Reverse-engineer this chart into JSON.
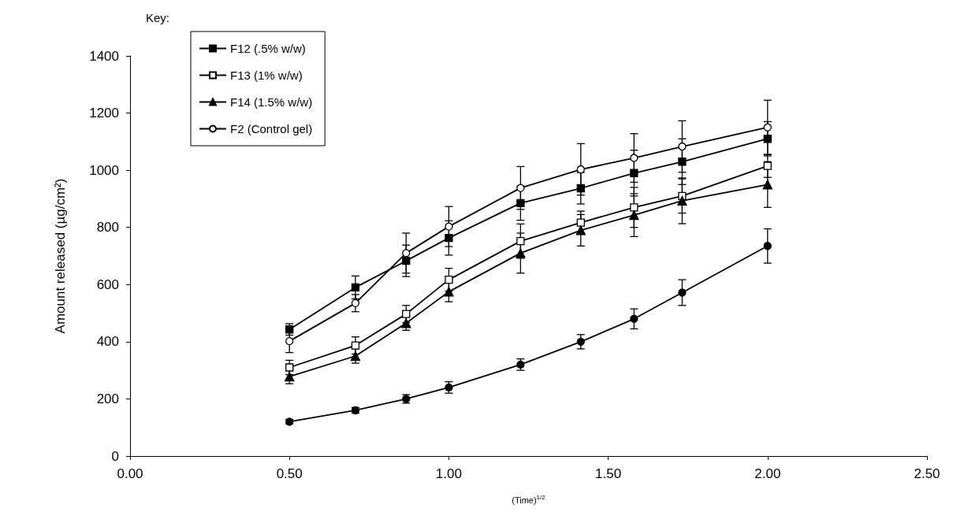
{
  "chart_data": {
    "type": "line",
    "xlabel": "(Time)$^{1/2}$",
    "ylabel": "Amount released (µg/cm²)",
    "legend_title": "Key:",
    "x": [
      0.5,
      0.707,
      0.866,
      1.0,
      1.225,
      1.414,
      1.581,
      1.732,
      2.0
    ],
    "xlim": [
      0,
      2.5
    ],
    "xticks": [
      {
        "value": 0,
        "label": "0.00"
      },
      {
        "value": 0.5,
        "label": "0.50"
      },
      {
        "value": 1,
        "label": "1.00"
      },
      {
        "value": 1.5,
        "label": "1.50"
      },
      {
        "value": 2,
        "label": "2.00"
      },
      {
        "value": 2.5,
        "label": "2.50"
      }
    ],
    "ylim": [
      0,
      1400
    ],
    "yticks": [
      0,
      200,
      400,
      600,
      800,
      1000,
      1200,
      1400
    ],
    "grid": false,
    "legend": "top left",
    "line_style": "solid",
    "series": [
      {
        "name": "F12 (.5% w/w)",
        "color": "#000000",
        "marker": "square",
        "values": [
          443,
          590,
          683,
          763,
          885,
          937,
          990,
          1030,
          1110
        ],
        "errors": [
          20,
          40,
          55,
          60,
          60,
          55,
          80,
          80,
          60
        ]
      },
      {
        "name": "F13 (1% w/w)",
        "color": "#000000",
        "marker": "square-open",
        "values": [
          310,
          387,
          497,
          617,
          752,
          817,
          870,
          910,
          1015
        ],
        "errors": [
          25,
          30,
          30,
          40,
          60,
          40,
          70,
          60,
          40
        ]
      },
      {
        "name": "F14 (1.5% w/w)",
        "color": "#000000",
        "marker": "triangle",
        "values": [
          278,
          350,
          465,
          575,
          710,
          790,
          843,
          893,
          950
        ],
        "errors": [
          25,
          25,
          25,
          35,
          70,
          55,
          75,
          80,
          80
        ]
      },
      {
        "name": "F2 (Control gel)",
        "color": "#000000",
        "marker": "circle-open",
        "values": [
          402,
          535,
          710,
          803,
          938,
          1003,
          1043,
          1083,
          1150
        ],
        "errors": [
          40,
          30,
          70,
          70,
          75,
          90,
          85,
          90,
          95
        ]
      },
      {
        "color": "#000000",
        "marker": "circle",
        "values": [
          120,
          160,
          200,
          240,
          320,
          400,
          480,
          572,
          735
        ],
        "errors": [
          8,
          10,
          15,
          20,
          20,
          25,
          35,
          45,
          60
        ]
      }
    ]
  }
}
